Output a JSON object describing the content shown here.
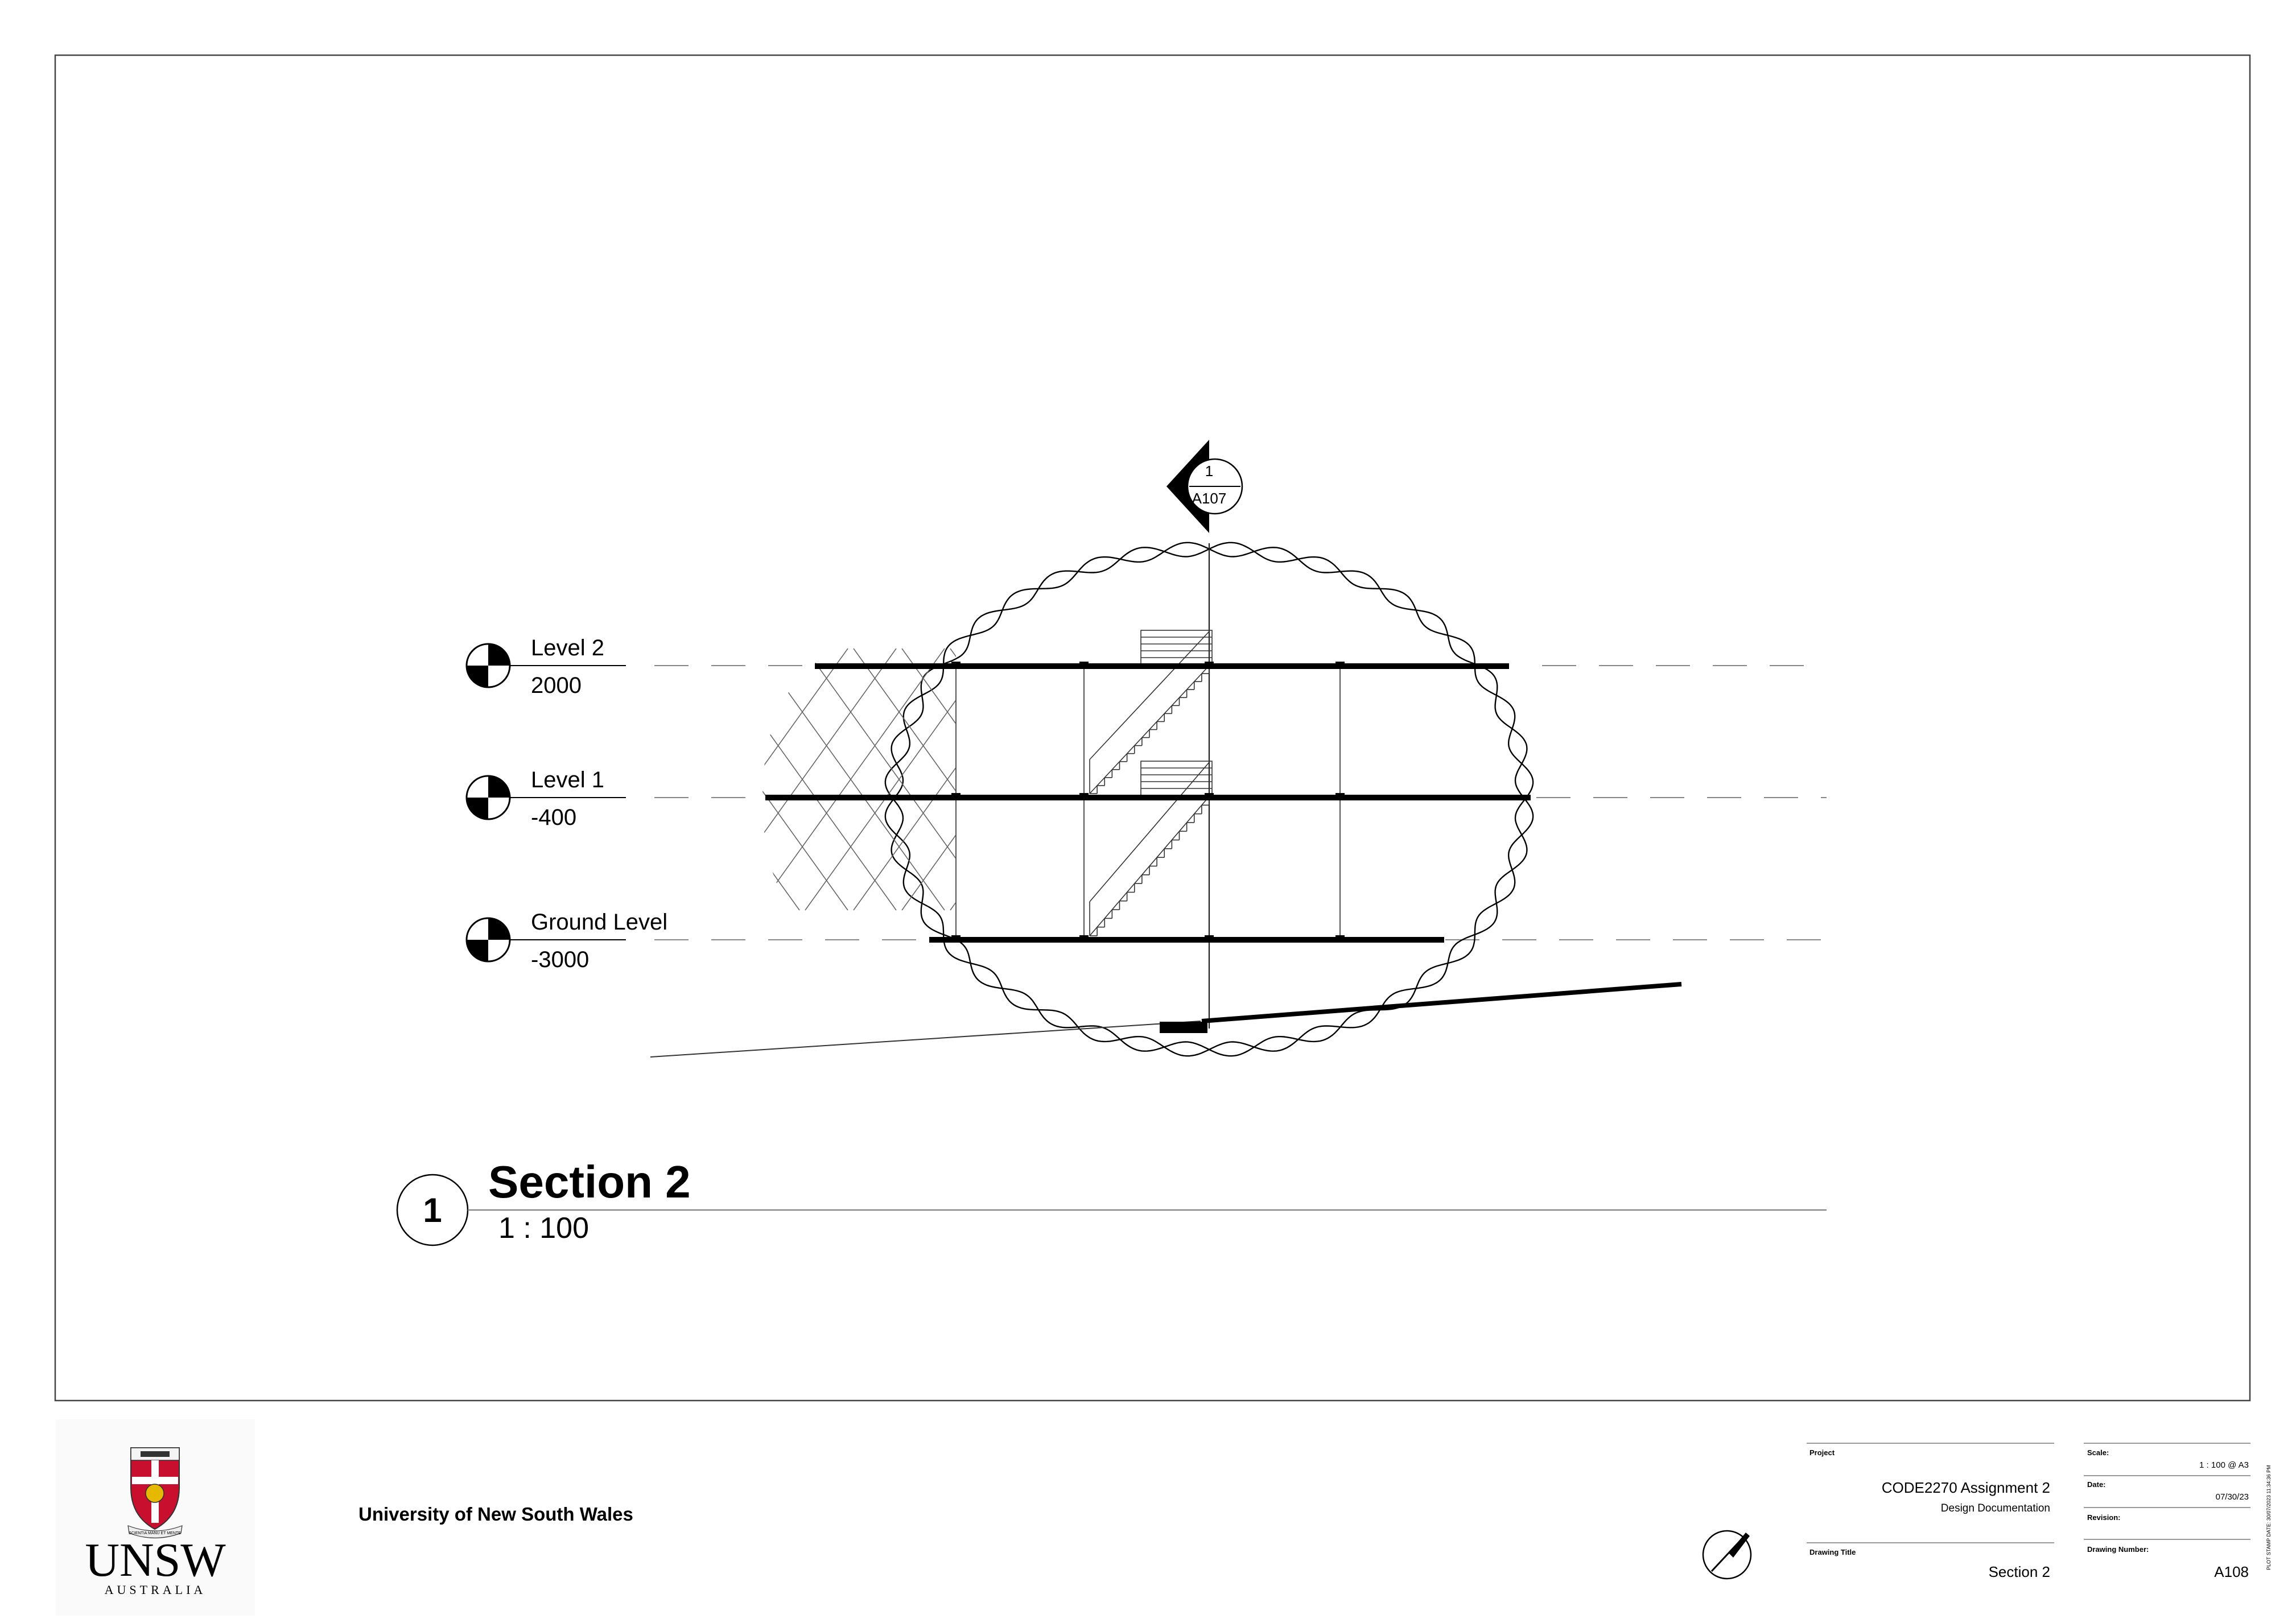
{
  "section_marker": {
    "number": "1",
    "sheet": "A107"
  },
  "levels": [
    {
      "name": "Level 2",
      "elevation": "2000"
    },
    {
      "name": "Level 1",
      "elevation": "-400"
    },
    {
      "name": "Ground Level",
      "elevation": "-3000"
    }
  ],
  "view_title": {
    "number": "1",
    "name": "Section 2",
    "scale": "1 : 100"
  },
  "institution": {
    "name": "University of New South Wales",
    "logo_word": "UNSW",
    "logo_sub": "AUSTRALIA",
    "logo_motto": "SCIENTIA MANU ET MENTE"
  },
  "title_block": {
    "project_label": "Project",
    "project": "CODE2270 Assignment 2",
    "project_sub": "Design Documentation",
    "drawing_title_label": "Drawing Title",
    "drawing_title": "Section 2",
    "scale_label": "Scale:",
    "scale": "1 : 100 @ A3",
    "date_label": "Date:",
    "date": "07/30/23",
    "revision_label": "Revision:",
    "revision": "",
    "drawing_number_label": "Drawing Number:",
    "drawing_number": "A108",
    "plot_stamp": "PLOT STAMP DATE: 30/07/2023 11:34:36 PM"
  }
}
